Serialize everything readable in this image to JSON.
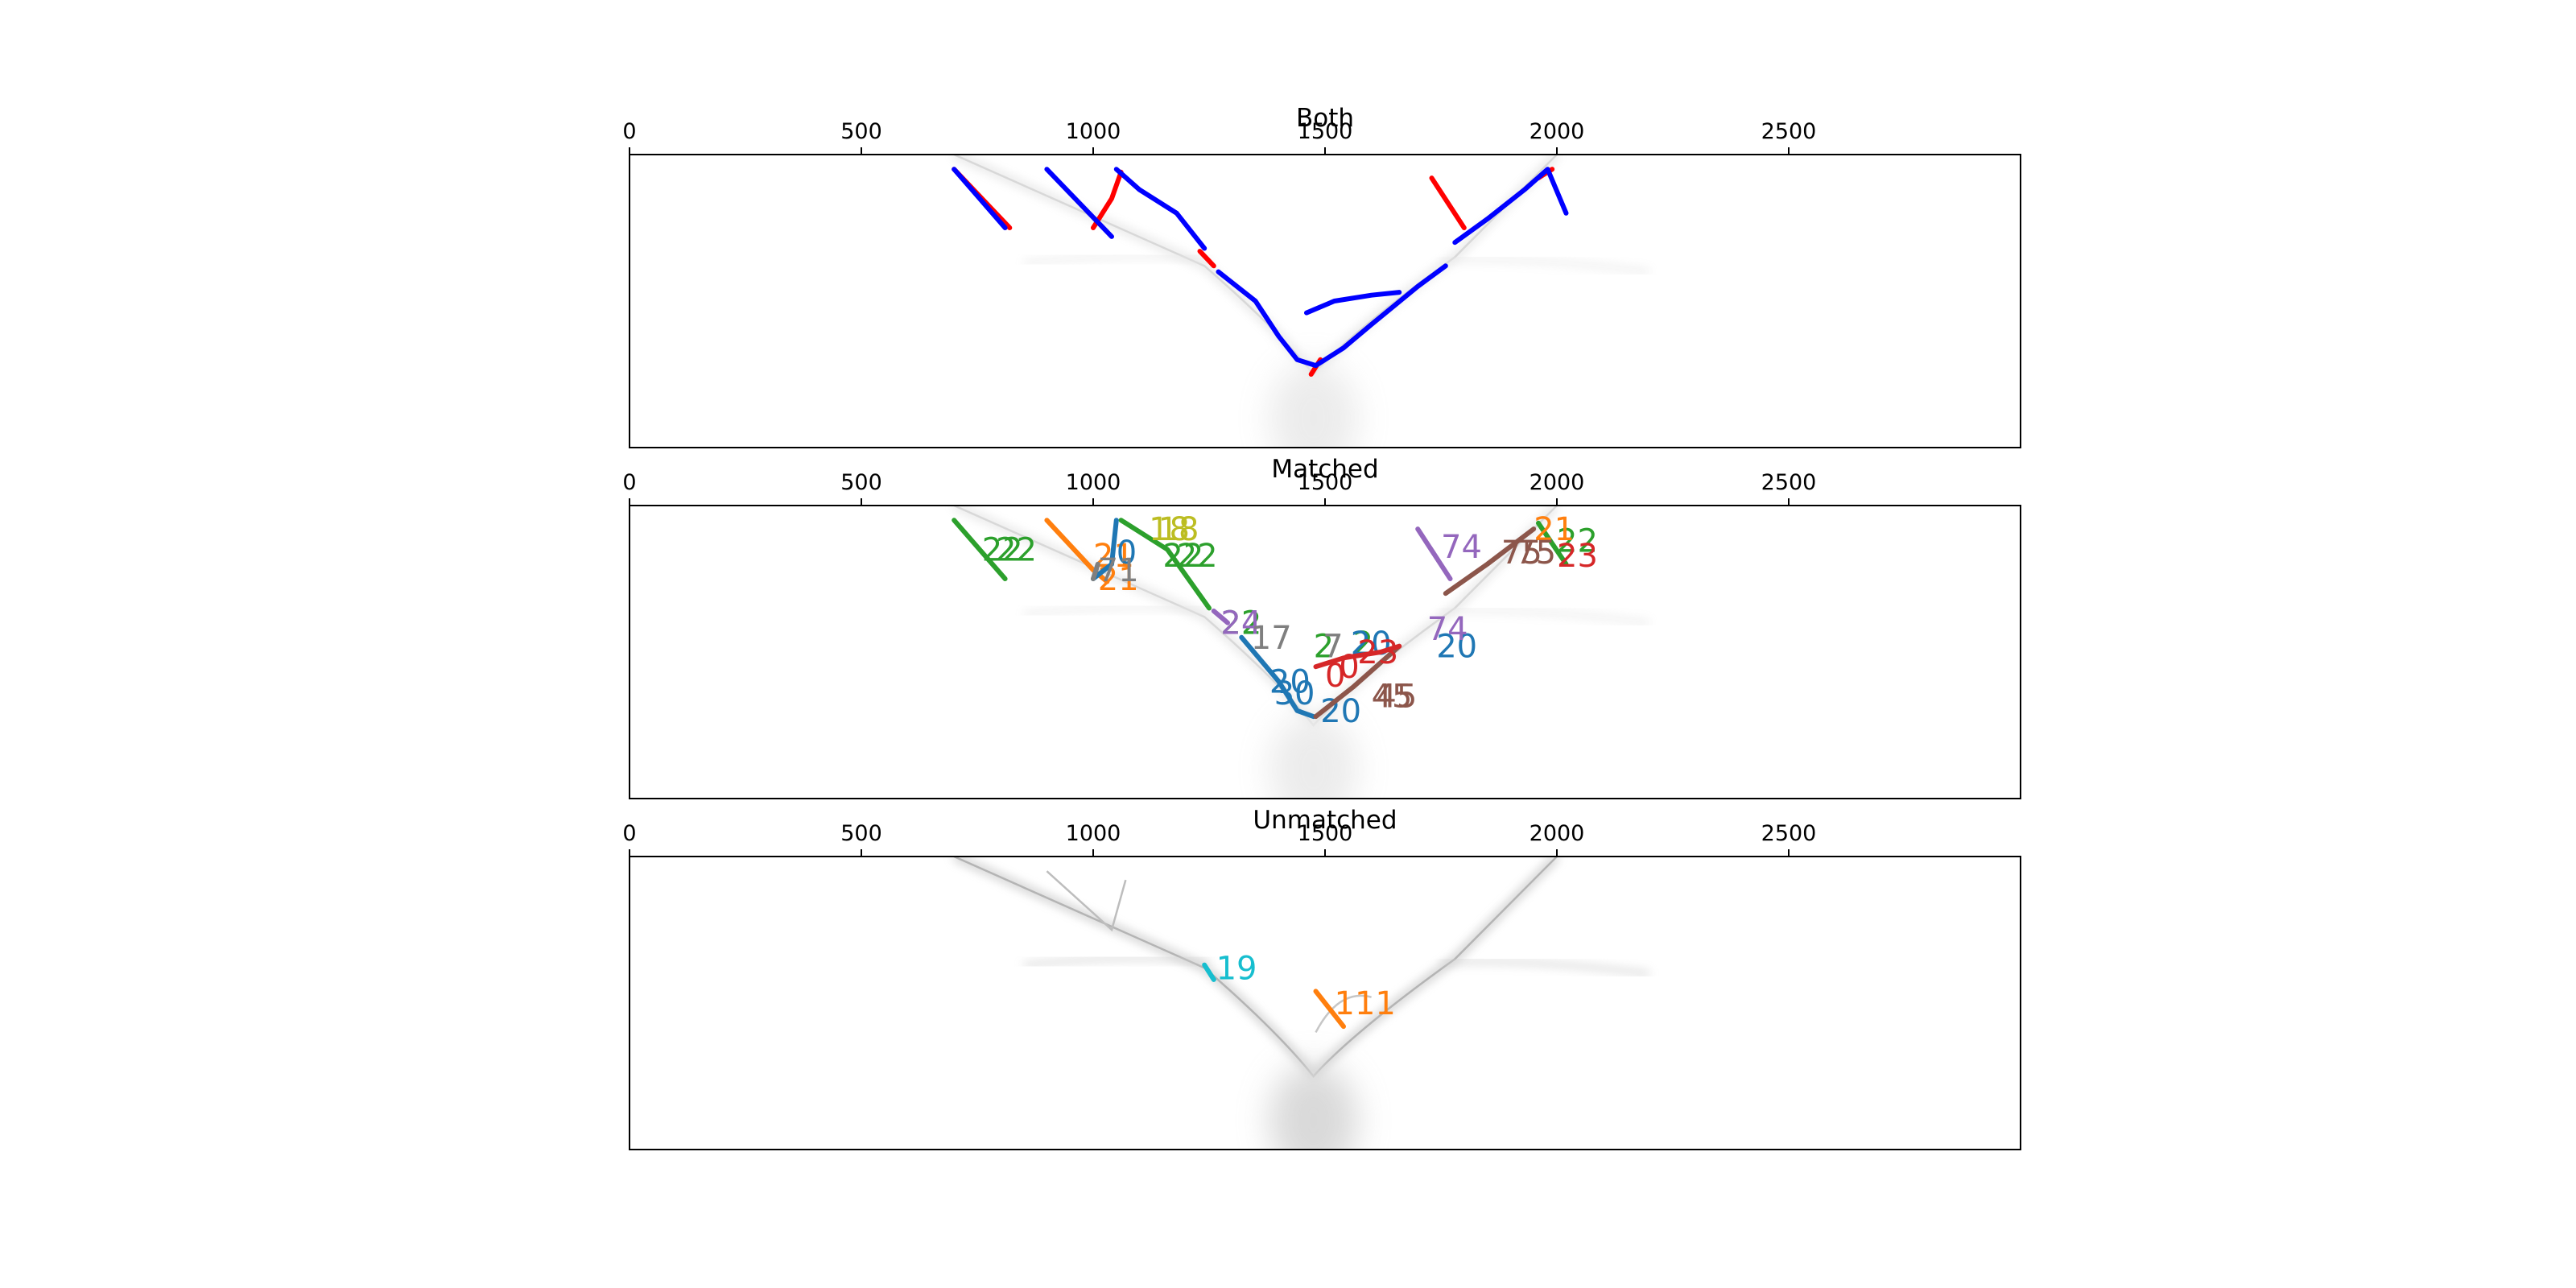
{
  "chart_data": [
    {
      "type": "line",
      "title": "Both",
      "xlim": [
        0,
        3000
      ],
      "x_ticks": [
        0,
        500,
        1000,
        1500,
        2000,
        2500
      ],
      "x_tick_labels": [
        "0",
        "500",
        "1000",
        "1500",
        "2000",
        "2500"
      ],
      "axis_position": "top",
      "ylim": [
        0,
        1
      ],
      "y_ticks": [],
      "background": "faint grey V-shaped curve",
      "series": [
        {
          "color": "#ff0000",
          "segments": [
            [
              [
                700,
                0.05
              ],
              [
                820,
                0.25
              ]
            ],
            [
              [
                1000,
                0.25
              ],
              [
                1040,
                0.15
              ],
              [
                1060,
                0.06
              ]
            ],
            [
              [
                1230,
                0.33
              ],
              [
                1260,
                0.38
              ]
            ],
            [
              [
                1730,
                0.08
              ],
              [
                1800,
                0.25
              ]
            ],
            [
              [
                1960,
                0.08
              ],
              [
                1990,
                0.05
              ]
            ],
            [
              [
                1470,
                0.75
              ],
              [
                1490,
                0.7
              ]
            ]
          ]
        },
        {
          "color": "#0000ff",
          "segments": [
            [
              [
                700,
                0.05
              ],
              [
                810,
                0.25
              ]
            ],
            [
              [
                900,
                0.05
              ],
              [
                1040,
                0.28
              ]
            ],
            [
              [
                1050,
                0.05
              ],
              [
                1100,
                0.12
              ],
              [
                1180,
                0.2
              ],
              [
                1240,
                0.32
              ]
            ],
            [
              [
                1270,
                0.4
              ],
              [
                1350,
                0.5
              ],
              [
                1400,
                0.62
              ],
              [
                1440,
                0.7
              ],
              [
                1480,
                0.72
              ]
            ],
            [
              [
                1480,
                0.72
              ],
              [
                1540,
                0.66
              ],
              [
                1600,
                0.58
              ],
              [
                1700,
                0.45
              ],
              [
                1760,
                0.38
              ]
            ],
            [
              [
                1460,
                0.54
              ],
              [
                1520,
                0.5
              ],
              [
                1600,
                0.48
              ],
              [
                1660,
                0.47
              ]
            ],
            [
              [
                1780,
                0.3
              ],
              [
                1850,
                0.22
              ],
              [
                1930,
                0.12
              ],
              [
                1980,
                0.05
              ],
              [
                2020,
                0.2
              ]
            ]
          ]
        }
      ]
    },
    {
      "type": "line",
      "title": "Matched",
      "xlim": [
        0,
        3000
      ],
      "x_ticks": [
        0,
        500,
        1000,
        1500,
        2000,
        2500
      ],
      "x_tick_labels": [
        "0",
        "500",
        "1000",
        "1500",
        "2000",
        "2500"
      ],
      "axis_position": "top",
      "ylim": [
        0,
        1
      ],
      "y_ticks": [],
      "background": "faint grey V-shaped curve",
      "series": [
        {
          "color": "#2ca02c",
          "labels": [
            {
              "text": "22",
              "x": 760,
              "y": 0.15
            },
            {
              "text": "22",
              "x": 790,
              "y": 0.15
            },
            {
              "text": "22",
              "x": 1150,
              "y": 0.17
            },
            {
              "text": "22",
              "x": 1180,
              "y": 0.17
            },
            {
              "text": "22",
              "x": 1275,
              "y": 0.4
            },
            {
              "text": "2",
              "x": 1475,
              "y": 0.48
            },
            {
              "text": "2",
              "x": 1560,
              "y": 0.47
            },
            {
              "text": "22",
              "x": 2000,
              "y": 0.12
            }
          ],
          "segments": [
            [
              [
                700,
                0.05
              ],
              [
                810,
                0.25
              ]
            ],
            [
              [
                1060,
                0.05
              ],
              [
                1160,
                0.15
              ],
              [
                1250,
                0.35
              ]
            ],
            [
              [
                1960,
                0.06
              ],
              [
                2020,
                0.2
              ]
            ]
          ]
        },
        {
          "color": "#ff7f0e",
          "labels": [
            {
              "text": "21",
              "x": 1000,
              "y": 0.17
            },
            {
              "text": "21",
              "x": 1010,
              "y": 0.25
            },
            {
              "text": "21",
              "x": 1950,
              "y": 0.08
            }
          ],
          "segments": [
            [
              [
                900,
                0.05
              ],
              [
                1000,
                0.22
              ],
              [
                1030,
                0.26
              ]
            ]
          ]
        },
        {
          "color": "#1f77b4",
          "labels": [
            {
              "text": "0",
              "x": 1050,
              "y": 0.16
            },
            {
              "text": "20",
              "x": 1555,
              "y": 0.47
            },
            {
              "text": "20",
              "x": 1740,
              "y": 0.48
            },
            {
              "text": "20",
              "x": 1380,
              "y": 0.6
            },
            {
              "text": "30",
              "x": 1390,
              "y": 0.64
            },
            {
              "text": "20",
              "x": 1490,
              "y": 0.7
            }
          ],
          "segments": [
            [
              [
                1050,
                0.05
              ],
              [
                1040,
                0.2
              ],
              [
                1000,
                0.25
              ]
            ],
            [
              [
                1320,
                0.45
              ],
              [
                1400,
                0.6
              ],
              [
                1440,
                0.7
              ],
              [
                1475,
                0.72
              ]
            ]
          ]
        },
        {
          "color": "#bcbd22",
          "labels": [
            {
              "text": "18",
              "x": 1120,
              "y": 0.08
            },
            {
              "text": "18",
              "x": 1140,
              "y": 0.08
            }
          ],
          "segments": []
        },
        {
          "color": "#9467bd",
          "labels": [
            {
              "text": "24",
              "x": 1275,
              "y": 0.4
            },
            {
              "text": "74",
              "x": 1750,
              "y": 0.14
            },
            {
              "text": "74",
              "x": 1720,
              "y": 0.42
            }
          ],
          "segments": [
            [
              [
                1700,
                0.08
              ],
              [
                1770,
                0.25
              ]
            ],
            [
              [
                1260,
                0.36
              ],
              [
                1290,
                0.4
              ]
            ]
          ]
        },
        {
          "color": "#8c564b",
          "labels": [
            {
              "text": "75",
              "x": 1880,
              "y": 0.16
            },
            {
              "text": "75",
              "x": 1910,
              "y": 0.16
            },
            {
              "text": "45",
              "x": 1600,
              "y": 0.65
            },
            {
              "text": "45",
              "x": 1610,
              "y": 0.65
            }
          ],
          "segments": [
            [
              [
                1760,
                0.3
              ],
              [
                1850,
                0.2
              ],
              [
                1950,
                0.08
              ]
            ],
            [
              [
                1480,
                0.72
              ],
              [
                1560,
                0.62
              ],
              [
                1660,
                0.48
              ]
            ]
          ]
        },
        {
          "color": "#d62728",
          "labels": [
            {
              "text": "23",
              "x": 2000,
              "y": 0.17
            },
            {
              "text": "23",
              "x": 1570,
              "y": 0.5
            },
            {
              "text": "0",
              "x": 1500,
              "y": 0.58
            },
            {
              "text": "0",
              "x": 1530,
              "y": 0.55
            }
          ],
          "segments": [
            [
              [
                1480,
                0.55
              ],
              [
                1540,
                0.52
              ],
              [
                1620,
                0.5
              ],
              [
                1660,
                0.48
              ]
            ]
          ]
        },
        {
          "color": "#7f7f7f",
          "labels": [
            {
              "text": "17",
              "x": 1340,
              "y": 0.45
            },
            {
              "text": "7",
              "x": 1495,
              "y": 0.48
            },
            {
              "text": "71",
              "x": 1010,
              "y": 0.22
            }
          ],
          "segments": [
            [
              [
                1000,
                0.25
              ],
              [
                1010,
                0.2
              ]
            ]
          ]
        }
      ]
    },
    {
      "type": "line",
      "title": "Unmatched",
      "xlim": [
        0,
        3000
      ],
      "x_ticks": [
        0,
        500,
        1000,
        1500,
        2000,
        2500
      ],
      "x_tick_labels": [
        "0",
        "500",
        "1000",
        "1500",
        "2000",
        "2500"
      ],
      "axis_position": "top",
      "ylim": [
        0,
        1
      ],
      "y_ticks": [],
      "background": "grey V-shaped curve",
      "series": [
        {
          "color": "#17becf",
          "labels": [
            {
              "text": "19",
              "x": 1265,
              "y": 0.38
            }
          ],
          "segments": [
            [
              [
                1240,
                0.37
              ],
              [
                1260,
                0.42
              ]
            ]
          ]
        },
        {
          "color": "#ff7f0e",
          "labels": [
            {
              "text": "111",
              "x": 1520,
              "y": 0.5
            }
          ],
          "segments": [
            [
              [
                1480,
                0.46
              ],
              [
                1540,
                0.58
              ]
            ]
          ]
        }
      ]
    }
  ]
}
